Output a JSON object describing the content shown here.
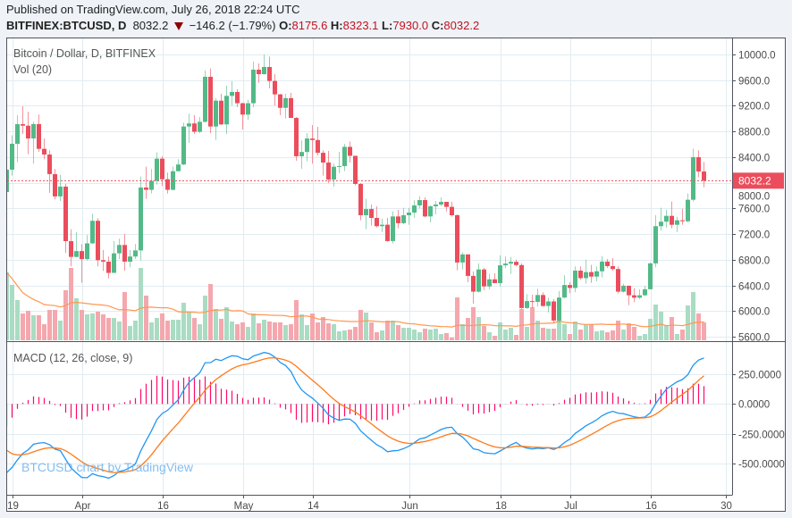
{
  "header": {
    "published": "Published on TradingView.com, July 26, 2018 22:24 UTC",
    "symbol": "BITFINEX:BTCUSD, D",
    "last": "8032.2",
    "direction_icon": "down-triangle",
    "change": "−146.2 (−1.79%)",
    "open_label": "O:",
    "open": "8175.6",
    "high_label": "H:",
    "high": "8323.1",
    "low_label": "L:",
    "low": "7930.0",
    "close_label": "C:",
    "close": "8032.2"
  },
  "panes": {
    "price_title": "Bitcoin / Dollar, D, BITFINEX",
    "volume_title": "Vol (20)",
    "macd_title": "MACD (12, 26, close, 9)",
    "watermark": "BTCUSD chart by TradingView"
  },
  "colors": {
    "up": "#53b987",
    "down": "#eb4d5c",
    "vol_up": "#a9dcc3",
    "vol_down": "#f5a7ae",
    "vol_ma": "#ff9850",
    "macd": "#2196f3",
    "signal": "#ff7a1a",
    "histogram": "#ff0a6c",
    "last_price": "#eb4d5c",
    "grid": "#e1ecf2"
  },
  "chart_data": {
    "type": "candlestick",
    "interval": "1D",
    "first_date": "2018-03-18",
    "ylim": [
      5600,
      10000
    ],
    "last_price_label": "8032.2",
    "y_ticks": [
      "10000.0",
      "9600.0",
      "9200.0",
      "8800.0",
      "8400.0",
      "8000.0",
      "7600.0",
      "7200.0",
      "6800.0",
      "6400.0",
      "6000.0",
      "5600.0"
    ],
    "x_ticks": [
      {
        "label": "19",
        "date": "2018-03-19"
      },
      {
        "label": "Apr",
        "date": "2018-04-01"
      },
      {
        "label": "16",
        "date": "2018-04-16"
      },
      {
        "label": "May",
        "date": "2018-05-01"
      },
      {
        "label": "14",
        "date": "2018-05-14"
      },
      {
        "label": "Jun",
        "date": "2018-06-01"
      },
      {
        "label": "18",
        "date": "2018-06-18"
      },
      {
        "label": "Jul",
        "date": "2018-07-01"
      },
      {
        "label": "16",
        "date": "2018-07-16"
      },
      {
        "label": "30",
        "date": "2018-07-30"
      }
    ],
    "candles_ohlc": [
      [
        7856,
        8250,
        7830,
        8204
      ],
      [
        8204,
        8738,
        8111,
        8608
      ],
      [
        8608,
        9053,
        8320,
        8914
      ],
      [
        8914,
        9193,
        8761,
        8890
      ],
      [
        8890,
        9109,
        8446,
        8691
      ],
      [
        8691,
        8950,
        8297,
        8915
      ],
      [
        8915,
        9063,
        8483,
        8529
      ],
      [
        8529,
        8691,
        8367,
        8440
      ],
      [
        8440,
        8506,
        7842,
        8135
      ],
      [
        8135,
        8214,
        7740,
        7787
      ],
      [
        7787,
        8125,
        7717,
        7940
      ],
      [
        7940,
        7982,
        6905,
        7090
      ],
      [
        7090,
        7276,
        6696,
        6844
      ],
      [
        6844,
        7230,
        6836,
        6935
      ],
      [
        6935,
        7044,
        6441,
        6810
      ],
      [
        6810,
        7184,
        6789,
        7055
      ],
      [
        7055,
        7518,
        7044,
        7407
      ],
      [
        7407,
        7448,
        6696,
        6793
      ],
      [
        6793,
        6952,
        6627,
        6770
      ],
      [
        6770,
        6849,
        6511,
        6595
      ],
      [
        6595,
        7091,
        6604,
        6900
      ],
      [
        6900,
        7128,
        6812,
        7030
      ],
      [
        7030,
        7202,
        6627,
        6770
      ],
      [
        6770,
        6952,
        6682,
        6850
      ],
      [
        6850,
        7044,
        6812,
        6945
      ],
      [
        6945,
        8098,
        6789,
        7926
      ],
      [
        7926,
        8251,
        7750,
        7890
      ],
      [
        7890,
        8214,
        7833,
        8030
      ],
      [
        8030,
        8473,
        7972,
        8376
      ],
      [
        8376,
        8413,
        7949,
        8055
      ],
      [
        8055,
        8158,
        7833,
        7890
      ],
      [
        7890,
        8251,
        7880,
        8180
      ],
      [
        8180,
        8367,
        8177,
        8285
      ],
      [
        8285,
        8937,
        8274,
        8877
      ],
      [
        8877,
        9077,
        8622,
        8925
      ],
      [
        8925,
        9053,
        8761,
        8795
      ],
      [
        8795,
        9026,
        8775,
        8950
      ],
      [
        8950,
        9749,
        8937,
        9652
      ],
      [
        9652,
        9782,
        8775,
        8877
      ],
      [
        8877,
        9318,
        8668,
        9280
      ],
      [
        9280,
        9387,
        8900,
        8910
      ],
      [
        8910,
        9513,
        8761,
        9355
      ],
      [
        9355,
        9582,
        9202,
        9416
      ],
      [
        9416,
        9457,
        9179,
        9240
      ],
      [
        9240,
        9248,
        8831,
        9063
      ],
      [
        9063,
        9295,
        8984,
        9240
      ],
      [
        9240,
        9889,
        9179,
        9763
      ],
      [
        9763,
        9861,
        9559,
        9693
      ],
      [
        9693,
        10000,
        9689,
        9805
      ],
      [
        9805,
        9967,
        9471,
        9587
      ],
      [
        9587,
        9694,
        9202,
        9378
      ],
      [
        9378,
        9387,
        9053,
        9168
      ],
      [
        9168,
        9387,
        9002,
        9320
      ],
      [
        9320,
        9401,
        9016,
        9011
      ],
      [
        9011,
        9026,
        8343,
        8413
      ],
      [
        8413,
        8659,
        8218,
        8480
      ],
      [
        8480,
        8775,
        8334,
        8690
      ],
      [
        8690,
        8900,
        8297,
        8667
      ],
      [
        8667,
        8872,
        8427,
        8467
      ],
      [
        8467,
        8506,
        8111,
        8315
      ],
      [
        8315,
        8497,
        7995,
        8051
      ],
      [
        8051,
        8297,
        7940,
        8250
      ],
      [
        8250,
        8483,
        8149,
        8260
      ],
      [
        8260,
        8608,
        8181,
        8560
      ],
      [
        8560,
        8645,
        8316,
        8420
      ],
      [
        8420,
        8413,
        7958,
        7982
      ],
      [
        7982,
        7995,
        7415,
        7494
      ],
      [
        7494,
        7750,
        7276,
        7590
      ],
      [
        7590,
        7661,
        7332,
        7452
      ],
      [
        7452,
        7634,
        7300,
        7323
      ],
      [
        7323,
        7439,
        7230,
        7346
      ],
      [
        7346,
        7453,
        7081,
        7091
      ],
      [
        7091,
        7555,
        7053,
        7475
      ],
      [
        7475,
        7578,
        7290,
        7370
      ],
      [
        7370,
        7610,
        7355,
        7494
      ],
      [
        7494,
        7610,
        7346,
        7535
      ],
      [
        7535,
        7726,
        7453,
        7647
      ],
      [
        7647,
        7787,
        7601,
        7730
      ],
      [
        7730,
        7773,
        7462,
        7475
      ],
      [
        7475,
        7648,
        7383,
        7633
      ],
      [
        7633,
        7717,
        7508,
        7660
      ],
      [
        7660,
        7773,
        7638,
        7702
      ],
      [
        7702,
        7703,
        7555,
        7624
      ],
      [
        7624,
        7703,
        7471,
        7494
      ],
      [
        7494,
        7508,
        6636,
        6757
      ],
      [
        6757,
        6914,
        6650,
        6883
      ],
      [
        6883,
        6882,
        6450,
        6548
      ],
      [
        6548,
        6617,
        6116,
        6302
      ],
      [
        6302,
        6743,
        6288,
        6648
      ],
      [
        6648,
        6673,
        6325,
        6384
      ],
      [
        6384,
        6580,
        6339,
        6495
      ],
      [
        6495,
        6590,
        6435,
        6435
      ],
      [
        6435,
        6868,
        6385,
        6713
      ],
      [
        6713,
        6849,
        6673,
        6740
      ],
      [
        6740,
        6845,
        6580,
        6768
      ],
      [
        6768,
        6803,
        6696,
        6717
      ],
      [
        6717,
        6743,
        6033,
        6047
      ],
      [
        6047,
        6265,
        6033,
        6155
      ],
      [
        6155,
        6255,
        6047,
        6143
      ],
      [
        6143,
        6348,
        6070,
        6250
      ],
      [
        6250,
        6293,
        6070,
        6079
      ],
      [
        6079,
        6209,
        5977,
        6150
      ],
      [
        6150,
        6186,
        5815,
        5852
      ],
      [
        5852,
        6311,
        5815,
        6210
      ],
      [
        6210,
        6557,
        6200,
        6406
      ],
      [
        6406,
        6450,
        6279,
        6360
      ],
      [
        6360,
        6696,
        6293,
        6630
      ],
      [
        6630,
        6696,
        6488,
        6513
      ],
      [
        6513,
        6803,
        6427,
        6607
      ],
      [
        6607,
        6719,
        6441,
        6537
      ],
      [
        6537,
        6696,
        6464,
        6620
      ],
      [
        6620,
        6859,
        6525,
        6771
      ],
      [
        6771,
        6812,
        6673,
        6700
      ],
      [
        6700,
        6826,
        6627,
        6655
      ],
      [
        6655,
        6696,
        6274,
        6302
      ],
      [
        6302,
        6427,
        6288,
        6395
      ],
      [
        6395,
        6395,
        6093,
        6246
      ],
      [
        6246,
        6358,
        6140,
        6208
      ],
      [
        6208,
        6339,
        6186,
        6246
      ],
      [
        6246,
        6395,
        6232,
        6340
      ],
      [
        6340,
        6757,
        6339,
        6743
      ],
      [
        6743,
        7494,
        6682,
        7323
      ],
      [
        7323,
        7610,
        7253,
        7393
      ],
      [
        7393,
        7578,
        7300,
        7484
      ],
      [
        7484,
        7708,
        7290,
        7345
      ],
      [
        7345,
        7471,
        7230,
        7415
      ],
      [
        7415,
        7597,
        7346,
        7400
      ],
      [
        7400,
        7833,
        7383,
        7735
      ],
      [
        7735,
        8529,
        7708,
        8399
      ],
      [
        8399,
        8506,
        8088,
        8175.6
      ],
      [
        8175.6,
        8323.1,
        7930.0,
        8032.2
      ]
    ],
    "volume": [
      76,
      62,
      45,
      30,
      33,
      28,
      28,
      18,
      34,
      34,
      22,
      56,
      81,
      47,
      34,
      29,
      30,
      32,
      29,
      25,
      25,
      21,
      54,
      16,
      22,
      81,
      50,
      20,
      25,
      30,
      22,
      23,
      23,
      42,
      32,
      25,
      18,
      50,
      63,
      35,
      24,
      37,
      21,
      18,
      20,
      15,
      30,
      19,
      23,
      21,
      20,
      20,
      17,
      18,
      45,
      29,
      17,
      30,
      20,
      26,
      19,
      18,
      10,
      11,
      12,
      15,
      34,
      31,
      20,
      9,
      11,
      22,
      22,
      17,
      14,
      14,
      12,
      9,
      13,
      12,
      13,
      7,
      8,
      3,
      48,
      18,
      25,
      37,
      26,
      16,
      9,
      5,
      20,
      12,
      14,
      6,
      35,
      15,
      37,
      22,
      14,
      13,
      13,
      47,
      18,
      7,
      21,
      12,
      18,
      18,
      10,
      11,
      9,
      11,
      22,
      12,
      19,
      15,
      5,
      7,
      24,
      40,
      32,
      17,
      26,
      7,
      12,
      39,
      54,
      30,
      20
    ],
    "volume_ma_period": 20,
    "macd": {
      "fast": 12,
      "slow": 26,
      "signal": 9,
      "source": "close",
      "y_ticks": [
        "250.0000",
        "0.0000",
        "-250.0000",
        "-500.0000"
      ],
      "ylim": [
        -500,
        250
      ]
    }
  }
}
